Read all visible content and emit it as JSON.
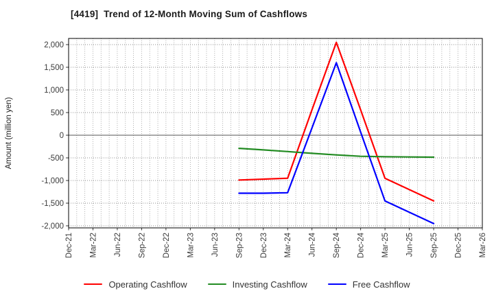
{
  "chart_data": {
    "type": "line",
    "title": "[4419]  Trend of 12-Month Moving Sum of Cashflows",
    "xlabel": "",
    "ylabel": "Amount (million yen)",
    "x_tick_labels": [
      "Dec-21",
      "Mar-22",
      "Jun-22",
      "Sep-22",
      "Dec-22",
      "Mar-23",
      "Jun-23",
      "Sep-23",
      "Dec-23",
      "Mar-24",
      "Jun-24",
      "Sep-24",
      "Dec-24",
      "Mar-25",
      "Jun-25",
      "Sep-25",
      "Dec-25",
      "Mar-26"
    ],
    "y_ticks": [
      2000,
      1500,
      1000,
      500,
      0,
      -500,
      -1000,
      -1500,
      -2000
    ],
    "ylim": [
      -2050,
      2140
    ],
    "grid": {
      "horizontal": "dotted every 500",
      "vertical": "dotted monthly",
      "zero_line": "solid"
    },
    "legend_position": "bottom",
    "categories": [
      "Sep-23",
      "Dec-23",
      "Mar-24",
      "Jun-24",
      "Sep-24",
      "Dec-24",
      "Mar-25",
      "Jun-25",
      "Sep-25"
    ],
    "series": [
      {
        "name": "Operating Cashflow",
        "color": "#ff0000",
        "values": [
          -990,
          -970,
          -950,
          560,
          2050,
          560,
          -950,
          -1200,
          -1450
        ]
      },
      {
        "name": "Investing Cashflow",
        "color": "#228b22",
        "values": [
          -290,
          -325,
          -360,
          -400,
          -435,
          -465,
          -475,
          -480,
          -485
        ]
      },
      {
        "name": "Free Cashflow",
        "color": "#0000ff",
        "values": [
          -1280,
          -1280,
          -1270,
          160,
          1600,
          70,
          -1450,
          -1700,
          -1950
        ]
      }
    ],
    "axis_colors": {
      "border": "#000000",
      "tick_label": "#3a3a3a",
      "grid": "#999999",
      "zero_line": "#555555"
    }
  }
}
